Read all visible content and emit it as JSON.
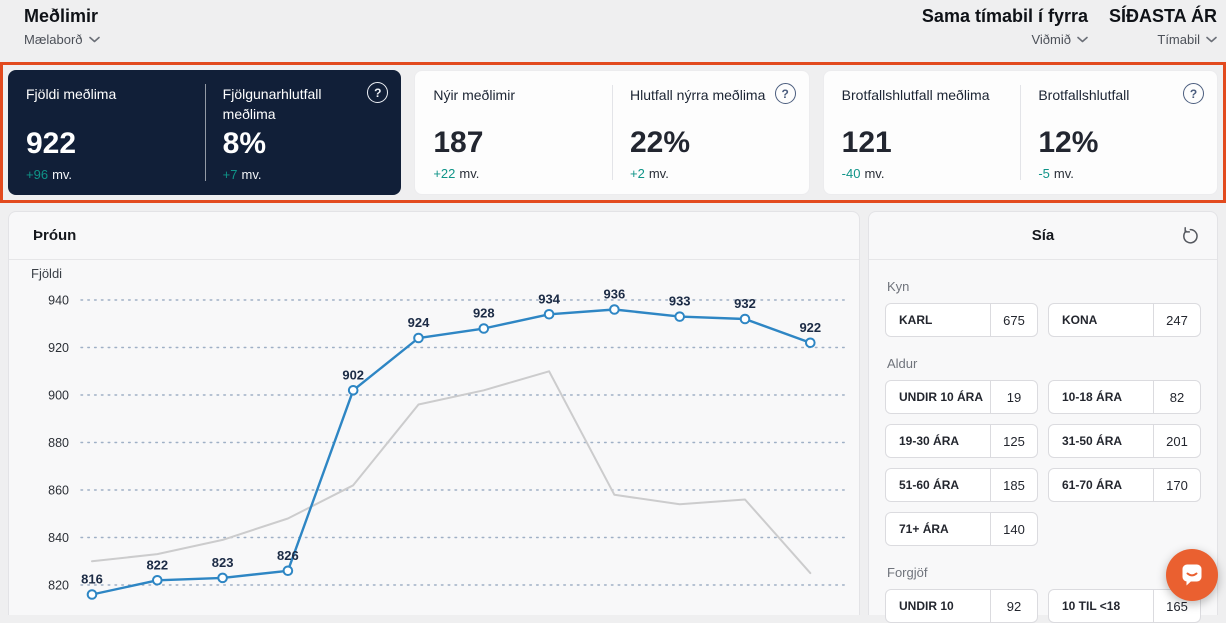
{
  "header": {
    "title": "Meðlimir",
    "nav_label": "Mælaborð",
    "comparison_value": "Sama tímabil í fyrra",
    "comparison_label": "Viðmið",
    "period_value": "SÍÐASTA ÁR",
    "period_label": "Tímabil"
  },
  "icons": {
    "help_glyph": "?"
  },
  "colors": {
    "highlight_border": "#e24a1e",
    "dark_card_bg": "#111f38",
    "delta_teal": "#0f9488",
    "line_blue": "#2e86c4",
    "line_gray": "#cccccd",
    "chat_orange": "#ea6030"
  },
  "kpi_cards": [
    {
      "theme": "dark",
      "metrics": [
        {
          "label": "Fjöldi meðlima",
          "value": "922",
          "delta": "+96",
          "delta_suffix": "mv."
        },
        {
          "label": "Fjölgunarhlutfall meðlima",
          "value": "8%",
          "delta": "+7",
          "delta_suffix": "mv."
        }
      ]
    },
    {
      "theme": "light",
      "metrics": [
        {
          "label": "Nýir meðlimir",
          "value": "187",
          "delta": "+22",
          "delta_suffix": "mv."
        },
        {
          "label": "Hlutfall nýrra meðlima",
          "value": "22%",
          "delta": "+2",
          "delta_suffix": "mv."
        }
      ]
    },
    {
      "theme": "light",
      "metrics": [
        {
          "label": "Brotfallshlutfall meðlima",
          "value": "121",
          "delta": "-40",
          "delta_suffix": "mv."
        },
        {
          "label": "Brotfallshlutfall",
          "value": "12%",
          "delta": "-5",
          "delta_suffix": "mv."
        }
      ]
    }
  ],
  "chart_panel": {
    "title": "Þróun"
  },
  "chart_data": {
    "type": "line",
    "title": "Þróun",
    "ylabel": "Fjöldi",
    "yticks": [
      940,
      920,
      900,
      880,
      860,
      840,
      820
    ],
    "ylim": [
      812,
      948
    ],
    "grid": "horizontal-dotted",
    "legend": "none",
    "x_labels_visible": false,
    "series": [
      {
        "name": "current-period",
        "color": "#2e86c4",
        "values": [
          816,
          822,
          823,
          826,
          902,
          924,
          928,
          934,
          936,
          933,
          932,
          922
        ],
        "markers": true,
        "data_labels": true
      },
      {
        "name": "comparison-period",
        "color": "#cccccd",
        "values": [
          830,
          833,
          839,
          848,
          862,
          896,
          902,
          910,
          858,
          854,
          856,
          825
        ],
        "markers": false,
        "data_labels": false
      }
    ]
  },
  "filter_panel": {
    "title": "Sía",
    "sections": [
      {
        "label": "Kyn",
        "options": [
          {
            "label": "KARL",
            "count": "675"
          },
          {
            "label": "KONA",
            "count": "247"
          }
        ]
      },
      {
        "label": "Aldur",
        "options": [
          {
            "label": "UNDIR 10 ÁRA",
            "count": "19"
          },
          {
            "label": "10-18 ÁRA",
            "count": "82"
          },
          {
            "label": "19-30 ÁRA",
            "count": "125"
          },
          {
            "label": "31-50 ÁRA",
            "count": "201"
          },
          {
            "label": "51-60 ÁRA",
            "count": "185"
          },
          {
            "label": "61-70 ÁRA",
            "count": "170"
          },
          {
            "label": "71+ ÁRA",
            "count": "140"
          }
        ]
      },
      {
        "label": "Forgjöf",
        "options": [
          {
            "label": "UNDIR 10",
            "count": "92"
          },
          {
            "label": "10 TIL <18",
            "count": "165"
          }
        ]
      }
    ]
  }
}
